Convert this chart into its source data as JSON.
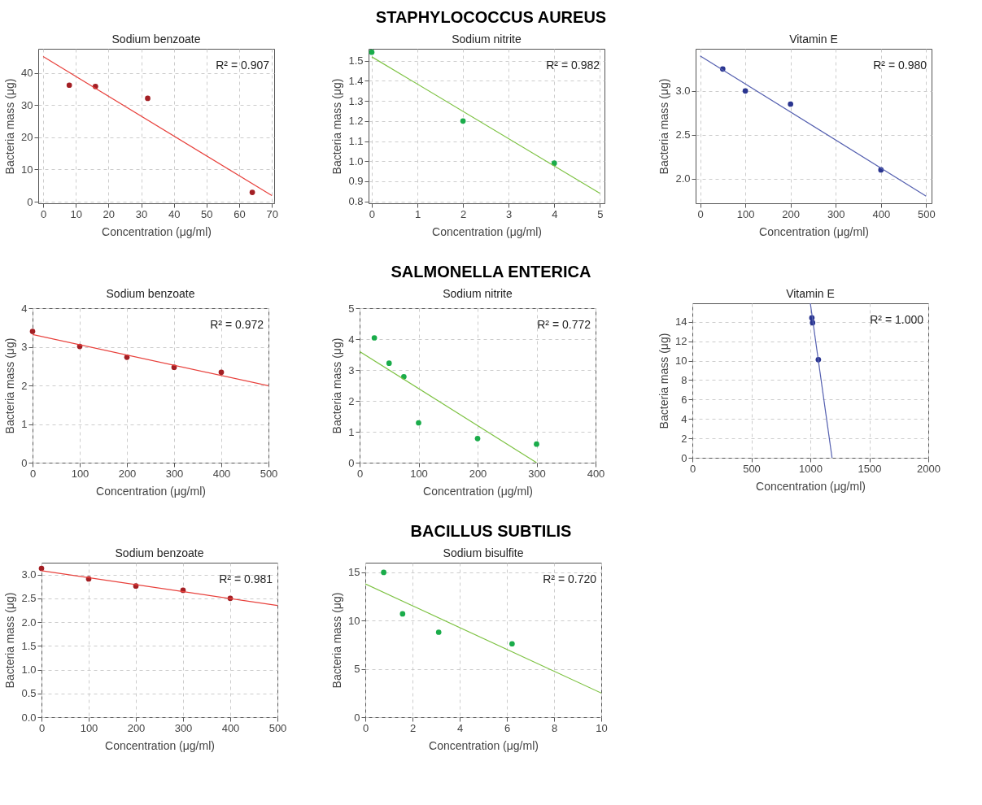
{
  "chart_data": [
    {
      "type": "other",
      "title": "STAPHYLOCOCCUS AUREUS"
    },
    {
      "type": "scatter",
      "title": "Sodium benzoate",
      "xlabel": "Concentration (μg/ml)",
      "ylabel": "Bacteria mass (μg)",
      "xlim": [
        -1.5,
        70.7
      ],
      "ylim": [
        -0.5,
        47.5
      ],
      "xticks": [
        0,
        10,
        20,
        30,
        40,
        50,
        60,
        70
      ],
      "yticks": [
        0,
        10,
        20,
        30,
        40
      ],
      "grid": true,
      "annotations": [
        "R² = 0.907"
      ],
      "series": [
        {
          "type": "scatter",
          "marker": "circle",
          "color": "#a31f24",
          "x": [
            8,
            16,
            32,
            64
          ],
          "values": [
            36.2,
            35.8,
            32.1,
            2.9
          ]
        },
        {
          "type": "line",
          "color": "#e8413c",
          "x": [
            0,
            70
          ],
          "values": [
            45.1,
            1.9
          ]
        }
      ]
    },
    {
      "type": "scatter",
      "title": "Sodium nitrite",
      "xlabel": "Concentration (μg/ml)",
      "ylabel": "Bacteria mass (μg)",
      "xlim": [
        -0.07,
        5.1
      ],
      "ylim": [
        0.79,
        1.56
      ],
      "xticks": [
        0,
        1,
        2,
        3,
        4,
        5
      ],
      "yticks": [
        {
          "value": 0.8,
          "label": "0.8"
        },
        {
          "value": 0.9,
          "label": "0.9"
        },
        {
          "value": 1.0,
          "label": "1.0"
        },
        {
          "value": 1.1,
          "label": "1.1"
        },
        {
          "value": 1.2,
          "label": "1.2"
        },
        {
          "value": 1.3,
          "label": "1.3"
        },
        {
          "value": 1.4,
          "label": "1.4"
        },
        {
          "value": 1.5,
          "label": "1.5"
        }
      ],
      "grid": true,
      "annotations": [
        "R² = 0.982"
      ],
      "series": [
        {
          "type": "scatter",
          "marker": "circle",
          "color": "#1aac4a",
          "x": [
            0,
            2,
            4
          ],
          "values": [
            1.543,
            1.2,
            0.99
          ]
        },
        {
          "type": "line",
          "color": "#7dc242",
          "x": [
            0,
            5
          ],
          "values": [
            1.52,
            0.84
          ]
        }
      ]
    },
    {
      "type": "scatter",
      "title": "Vitamin E",
      "xlabel": "Concentration (μg/ml)",
      "ylabel": "Bacteria mass (μg)",
      "xlim": [
        -10,
        512
      ],
      "ylim": [
        1.72,
        3.48
      ],
      "xticks": [
        0,
        100,
        200,
        300,
        400,
        500
      ],
      "yticks": [
        {
          "value": 2,
          "label": "2.0"
        },
        2.5,
        {
          "value": 3,
          "label": "3.0"
        }
      ],
      "grid": true,
      "annotations": [
        "R² = 0.980"
      ],
      "series": [
        {
          "type": "scatter",
          "marker": "circle",
          "color": "#2a3590",
          "x": [
            50,
            100,
            200,
            400
          ],
          "values": [
            3.25,
            3.0,
            2.85,
            2.1
          ]
        },
        {
          "type": "line",
          "color": "#5560b0",
          "x": [
            0,
            500
          ],
          "values": [
            3.4,
            1.8
          ]
        }
      ]
    },
    {
      "type": "other",
      "title": "SALMONELLA ENTERICA"
    },
    {
      "type": "scatter",
      "title": "Sodium benzoate",
      "xlabel": "Concentration (μg/ml)",
      "ylabel": "Bacteria mass (μg)",
      "xlim": [
        0,
        500
      ],
      "ylim": [
        0,
        4
      ],
      "xticks": [
        0,
        100,
        200,
        300,
        400,
        500
      ],
      "yticks": [
        0,
        1,
        2,
        3,
        4
      ],
      "grid": true,
      "annotations": [
        "R² = 0.972"
      ],
      "series": [
        {
          "type": "scatter",
          "marker": "circle",
          "color": "#a31f24",
          "x": [
            0,
            100,
            200,
            300,
            400
          ],
          "values": [
            3.4,
            3.01,
            2.73,
            2.47,
            2.34
          ]
        },
        {
          "type": "line",
          "color": "#e8413c",
          "x": [
            0,
            500
          ],
          "values": [
            3.32,
            1.99
          ]
        }
      ]
    },
    {
      "type": "scatter",
      "title": "Sodium nitrite",
      "xlabel": "Concentration (μg/ml)",
      "ylabel": "Bacteria mass (μg)",
      "xlim": [
        0,
        400
      ],
      "ylim": [
        0,
        5
      ],
      "xticks": [
        0,
        100,
        200,
        300,
        400
      ],
      "yticks": [
        0,
        1,
        2,
        3,
        4,
        5
      ],
      "grid": true,
      "annotations": [
        "R² = 0.772"
      ],
      "series": [
        {
          "type": "scatter",
          "marker": "circle",
          "color": "#1aac4a",
          "x": [
            25,
            50,
            75,
            100,
            200,
            300
          ],
          "values": [
            4.04,
            3.22,
            2.78,
            1.29,
            0.78,
            0.6
          ]
        },
        {
          "type": "line",
          "color": "#7dc242",
          "x": [
            0,
            300
          ],
          "values": [
            3.6,
            0
          ]
        }
      ]
    },
    {
      "type": "scatter",
      "title": "Vitamin E",
      "xlabel": "Concentration (μg/ml)",
      "ylabel": "Bacteria mass (μg)",
      "xlim": [
        0,
        2000
      ],
      "ylim": [
        0,
        15.9
      ],
      "xticks": [
        0,
        500,
        1000,
        1500,
        2000
      ],
      "yticks": [
        0,
        2,
        4,
        6,
        8,
        10,
        12,
        14
      ],
      "grid": true,
      "annotations": [
        "R² = 1.000"
      ],
      "series": [
        {
          "type": "scatter",
          "marker": "circle",
          "color": "#2a3590",
          "x": [
            1013,
            1019,
            1068
          ],
          "values": [
            14.4,
            13.9,
            10.1
          ]
        },
        {
          "type": "line",
          "color": "#5560b0",
          "x": [
            1000,
            1184
          ],
          "values": [
            15.9,
            0
          ]
        }
      ]
    },
    {
      "type": "other",
      "title": "BACILLUS SUBTILIS"
    },
    {
      "type": "scatter",
      "title": "Sodium benzoate",
      "xlabel": "Concentration (μg/ml)",
      "ylabel": "Bacteria mass (μg)",
      "xlim": [
        0,
        500
      ],
      "ylim": [
        0,
        3.25
      ],
      "xticks": [
        0,
        100,
        200,
        300,
        400,
        500
      ],
      "yticks": [
        {
          "value": 0,
          "label": "0.0"
        },
        0.5,
        {
          "value": 1,
          "label": "1.0"
        },
        1.5,
        {
          "value": 2,
          "label": "2.0"
        },
        2.5,
        {
          "value": 3,
          "label": "3.0"
        }
      ],
      "grid": true,
      "annotations": [
        "R² = 0.981"
      ],
      "series": [
        {
          "type": "scatter",
          "marker": "circle",
          "color": "#a31f24",
          "x": [
            0,
            100,
            200,
            300,
            400
          ],
          "values": [
            3.13,
            2.91,
            2.76,
            2.67,
            2.5
          ]
        },
        {
          "type": "line",
          "color": "#e8413c",
          "x": [
            0,
            500
          ],
          "values": [
            3.08,
            2.35
          ]
        }
      ]
    },
    {
      "type": "scatter",
      "title": "Sodium bisulfite",
      "xlabel": "Concentration (μg/ml)",
      "ylabel": "Bacteria mass (μg)",
      "xlim": [
        0,
        10
      ],
      "ylim": [
        0,
        16
      ],
      "xticks": [
        0,
        2,
        4,
        6,
        8,
        10
      ],
      "yticks": [
        0,
        5,
        10,
        15
      ],
      "grid": true,
      "annotations": [
        "R² = 0.720"
      ],
      "series": [
        {
          "type": "scatter",
          "marker": "circle",
          "color": "#1aac4a",
          "x": [
            0.78,
            1.58,
            3.11,
            6.22
          ],
          "values": [
            15.0,
            10.7,
            8.8,
            7.6
          ]
        },
        {
          "type": "line",
          "color": "#7dc242",
          "x": [
            0,
            10
          ],
          "values": [
            13.8,
            2.5
          ]
        }
      ]
    }
  ]
}
